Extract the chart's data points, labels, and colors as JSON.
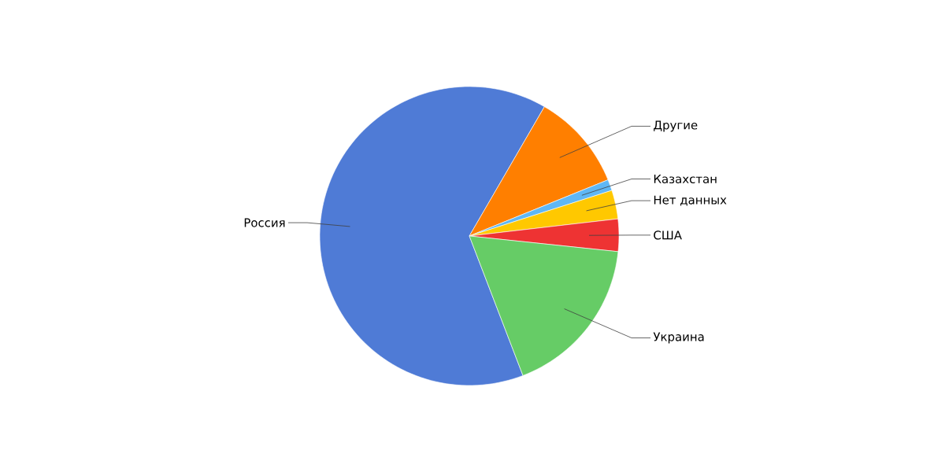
{
  "chart_data": {
    "type": "pie",
    "categories": [
      "Россия",
      "Другие",
      "Казахстан",
      "Нет данных",
      "США",
      "Украина"
    ],
    "values": [
      64.2,
      10.5,
      1.2,
      3.1,
      3.5,
      17.5
    ],
    "colors": [
      "#4f7bd6",
      "#ff7f00",
      "#5fb7f5",
      "#ffc800",
      "#ee3333",
      "#66cc66"
    ]
  }
}
